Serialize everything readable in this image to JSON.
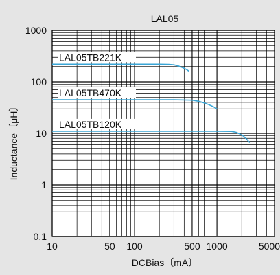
{
  "chart_data": {
    "type": "line",
    "title": "LAL05",
    "xlabel": "DCBias〔mA〕",
    "ylabel": "Inductance〔μH〕",
    "x_scale": "log",
    "y_scale": "log",
    "xlim": [
      10,
      5000
    ],
    "ylim": [
      0.1,
      1000
    ],
    "x_ticks": [
      {
        "value": 10,
        "label": "10"
      },
      {
        "value": 50,
        "label": "50"
      },
      {
        "value": 100,
        "label": "100"
      },
      {
        "value": 500,
        "label": "500"
      },
      {
        "value": 1000,
        "label": "1000"
      },
      {
        "value": 5000,
        "label": "5000"
      }
    ],
    "y_ticks": [
      {
        "value": 1000,
        "label": "1000"
      },
      {
        "value": 100,
        "label": "100"
      },
      {
        "value": 10,
        "label": "10"
      },
      {
        "value": 1,
        "label": "1"
      },
      {
        "value": 0.1,
        "label": "0.1"
      }
    ],
    "grid": true,
    "series_color": "#3aa6d6",
    "series": [
      {
        "name": "LAL05TB221K",
        "x": [
          10,
          100,
          200,
          260,
          300,
          340,
          380,
          420,
          460
        ],
        "y": [
          220,
          220,
          220,
          219,
          214,
          204,
          190,
          176,
          160
        ]
      },
      {
        "name": "LAL05TB470K",
        "x": [
          10,
          100,
          300,
          500,
          600,
          700,
          800,
          900,
          1000
        ],
        "y": [
          45,
          45,
          45,
          44,
          42,
          39,
          36,
          33,
          30
        ]
      },
      {
        "name": "LAL05TB120K",
        "x": [
          10,
          100,
          1000,
          1500,
          1700,
          1900,
          2100,
          2300,
          2500
        ],
        "y": [
          11,
          11,
          11,
          10.9,
          10.5,
          9.7,
          8.8,
          7.7,
          6.6
        ]
      }
    ]
  }
}
